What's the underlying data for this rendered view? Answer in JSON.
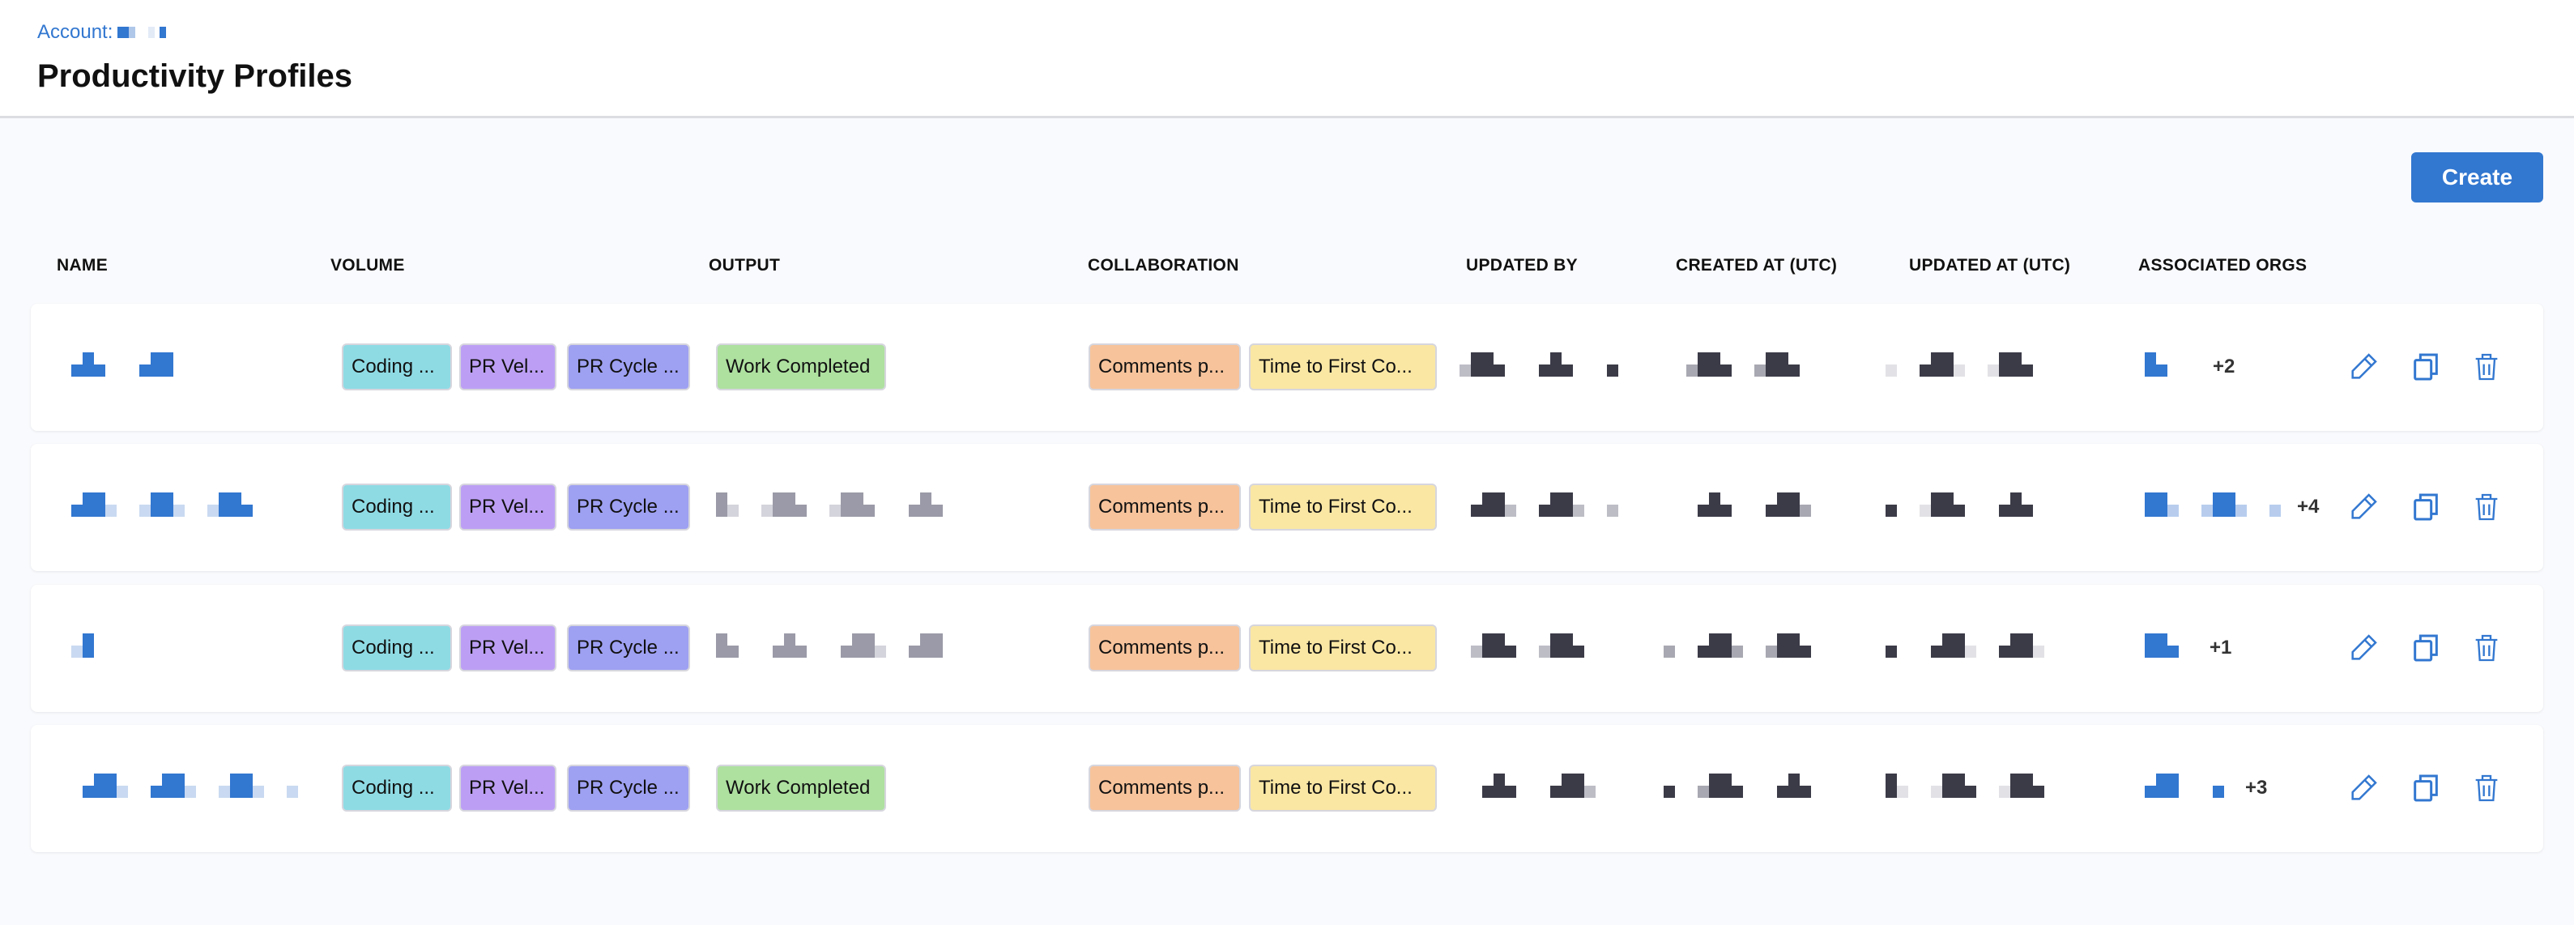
{
  "header": {
    "account_label": "Account:",
    "title": "Productivity Profiles"
  },
  "toolbar": {
    "create_label": "Create"
  },
  "table": {
    "columns": [
      "NAME",
      "VOLUME",
      "OUTPUT",
      "COLLABORATION",
      "UPDATED BY",
      "CREATED AT (UTC)",
      "UPDATED AT (UTC)",
      "ASSOCIATED ORGS"
    ],
    "rows": [
      {
        "volume": [
          "Coding ...",
          "PR Vel...",
          "PR Cycle ..."
        ],
        "output": "Work Completed",
        "collaboration": [
          "Comments p...",
          "Time to First Co..."
        ],
        "orgs_more": "+2"
      },
      {
        "volume": [
          "Coding ...",
          "PR Vel...",
          "PR Cycle ..."
        ],
        "output": "",
        "collaboration": [
          "Comments p...",
          "Time to First Co..."
        ],
        "orgs_more": "+4"
      },
      {
        "volume": [
          "Coding ...",
          "PR Vel...",
          "PR Cycle ..."
        ],
        "output": "",
        "collaboration": [
          "Comments p...",
          "Time to First Co..."
        ],
        "orgs_more": "+1"
      },
      {
        "volume": [
          "Coding ...",
          "PR Vel...",
          "PR Cycle ..."
        ],
        "output": "Work Completed",
        "collaboration": [
          "Comments p...",
          "Time to First Co..."
        ],
        "orgs_more": "+3"
      }
    ]
  },
  "icons": {
    "edit": "pencil-icon",
    "copy": "copy-icon",
    "delete": "trash-icon"
  },
  "colors": {
    "accent": "#3277d0",
    "volume_coding": "#8edbe4",
    "volume_pr_velocity": "#bc9ff4",
    "volume_pr_cycle": "#9ea0f2",
    "output": "#aee0a0",
    "collab_comments": "#f6c39b",
    "collab_ttfc": "#fae7a4"
  }
}
